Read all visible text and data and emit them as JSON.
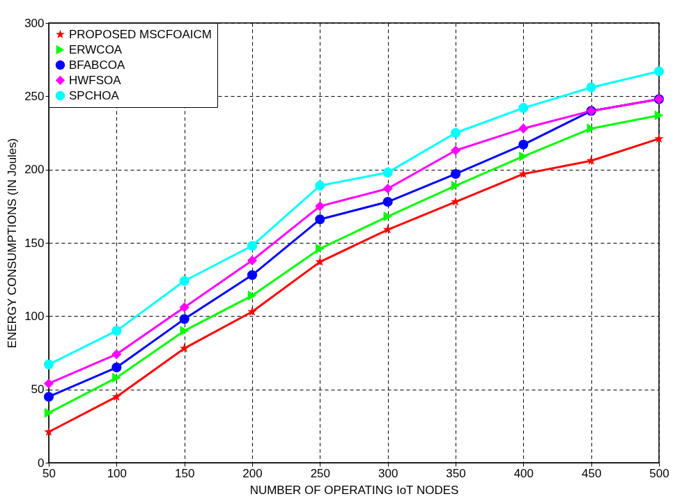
{
  "chart_data": {
    "type": "line",
    "xlabel": "NUMBER OF OPERATING IoT NODES",
    "ylabel": "ENERGY CONSUMPTIONS (IN Joules)",
    "x": [
      50,
      100,
      150,
      200,
      250,
      300,
      350,
      400,
      450,
      500
    ],
    "xlim": [
      50,
      500
    ],
    "xticks": [
      50,
      100,
      150,
      200,
      250,
      300,
      350,
      400,
      450,
      500
    ],
    "ylim": [
      0,
      300
    ],
    "yticks": [
      0,
      50,
      100,
      150,
      200,
      250,
      300
    ],
    "grid": true,
    "legend": "top left",
    "line_style": "solid",
    "series": [
      {
        "name": "PROPOSED MSCFOAICM",
        "color": "#ff0000",
        "marker": "star",
        "values": [
          21,
          45,
          78,
          103,
          137,
          159,
          178,
          197,
          206,
          221
        ]
      },
      {
        "name": "ERWCOA",
        "color": "#00ff00",
        "marker": "triangle",
        "values": [
          34,
          58,
          90,
          114,
          146,
          168,
          189,
          209,
          228,
          237
        ]
      },
      {
        "name": "BFABCOA",
        "color": "#0000ff",
        "marker": "circle",
        "values": [
          45,
          65,
          98,
          128,
          166,
          178,
          197,
          217,
          240,
          248
        ]
      },
      {
        "name": "HWFSOA",
        "color": "#ff00ff",
        "marker": "diamond",
        "values": [
          54,
          74,
          106,
          138,
          175,
          187,
          213,
          228,
          240,
          248
        ]
      },
      {
        "name": "SPCHOA",
        "color": "#00ffff",
        "marker": "circle",
        "values": [
          67,
          90,
          124,
          148,
          189,
          198,
          225,
          242,
          256,
          267
        ]
      }
    ]
  }
}
